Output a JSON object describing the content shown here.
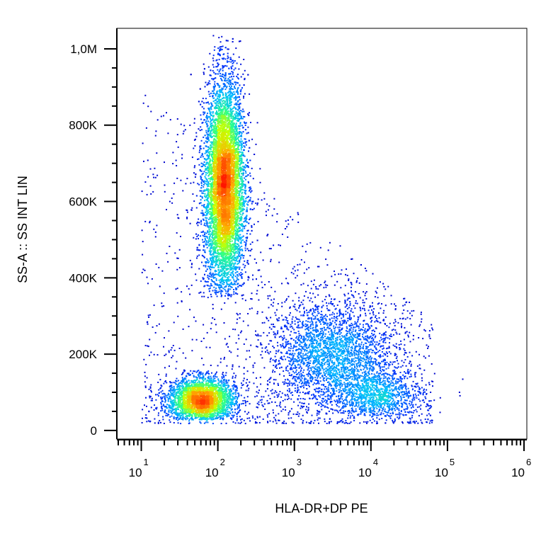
{
  "chart_data": {
    "type": "scatter",
    "style": "flow-cytometry density dot plot (color = event density, blue low to red high)",
    "xlabel": "HLA-DR+DP PE",
    "ylabel": "SS-A :: SS INT LIN",
    "x_scale": "log",
    "y_scale": "linear",
    "xlim": [
      5,
      1000000
    ],
    "ylim": [
      -15000,
      1050000
    ],
    "x_ticks": [
      {
        "value": 10,
        "base": "10",
        "exp": "1"
      },
      {
        "value": 100,
        "base": "10",
        "exp": "2"
      },
      {
        "value": 1000,
        "base": "10",
        "exp": "3"
      },
      {
        "value": 10000,
        "base": "10",
        "exp": "4"
      },
      {
        "value": 100000,
        "base": "10",
        "exp": "5"
      },
      {
        "value": 1000000,
        "base": "10",
        "exp": "6"
      }
    ],
    "y_ticks": [
      {
        "value": 0,
        "label": "0"
      },
      {
        "value": 200000,
        "label": "200K"
      },
      {
        "value": 400000,
        "label": "400K"
      },
      {
        "value": 600000,
        "label": "600K"
      },
      {
        "value": 800000,
        "label": "800K"
      },
      {
        "value": 1000000,
        "label": "1,0M"
      }
    ],
    "populations": [
      {
        "x_center": 120,
        "x_log_sd": 0.13,
        "y_center": 640000,
        "y_sd": 140000,
        "y_min": 350000,
        "y_max": 1040000,
        "events": 9000,
        "peak_color": "#ff2a00"
      },
      {
        "x_center": 60,
        "x_log_sd": 0.22,
        "y_center": 80000,
        "y_sd": 30000,
        "y_min": 30000,
        "y_max": 160000,
        "events": 3200,
        "peak_color": "#ffc800"
      },
      {
        "x_center": 3000,
        "x_log_sd": 0.4,
        "y_center": 200000,
        "y_sd": 70000,
        "y_min": 50000,
        "y_max": 450000,
        "events": 2600,
        "peak_color": "#00c8ff"
      },
      {
        "x_center": 12000,
        "x_log_sd": 0.3,
        "y_center": 90000,
        "y_sd": 35000,
        "y_min": 40000,
        "y_max": 250000,
        "events": 1100,
        "peak_color": "#30ff90"
      }
    ]
  }
}
